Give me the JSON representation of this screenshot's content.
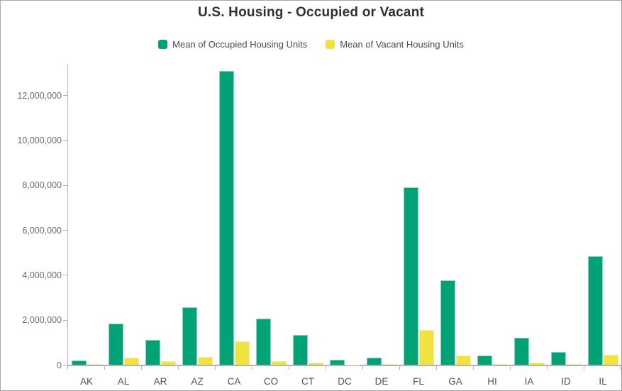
{
  "chart": {
    "title": "U.S. Housing - Occupied or Vacant"
  },
  "chart_data": {
    "type": "bar",
    "title": "U.S. Housing - Occupied or Vacant",
    "categories": [
      "AK",
      "AL",
      "AR",
      "AZ",
      "CA",
      "CO",
      "CT",
      "DC",
      "DE",
      "FL",
      "GA",
      "HI",
      "IA",
      "ID",
      "IL"
    ],
    "series": [
      {
        "name": "Mean of Occupied Housing Units",
        "color": "#00a276",
        "stroke": "#8fd4bd",
        "values": [
          220000,
          1840000,
          1130000,
          2560000,
          13100000,
          2080000,
          1330000,
          250000,
          320000,
          7900000,
          3790000,
          440000,
          1210000,
          590000,
          4840000
        ]
      },
      {
        "name": "Mean of Vacant Housing Units",
        "color": "#f0e33f",
        "stroke": "#f6efa0",
        "values": [
          45000,
          330000,
          160000,
          350000,
          1050000,
          180000,
          100000,
          30000,
          55000,
          1570000,
          440000,
          50000,
          110000,
          55000,
          460000
        ]
      }
    ],
    "y_ticks": [
      "0",
      "2,000,000",
      "4,000,000",
      "6,000,000",
      "8,000,000",
      "10,000,000",
      "12,000,000"
    ],
    "y_tick_values": [
      0,
      2000000,
      4000000,
      6000000,
      8000000,
      10000000,
      12000000
    ],
    "xlabel": "",
    "ylabel": "",
    "ylim": [
      0,
      13200000
    ],
    "grid": false,
    "legend_position": "top",
    "axis_color": "#b3b3b3"
  }
}
